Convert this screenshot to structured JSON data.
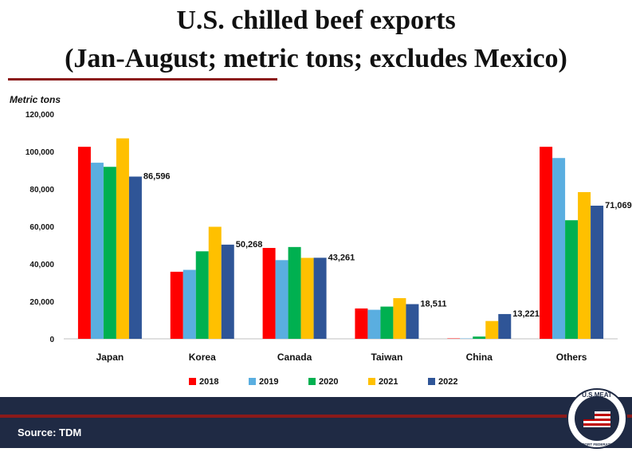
{
  "title_line1": "U.S. chilled beef exports",
  "title_line2": "(Jan-August; metric tons; excludes Mexico)",
  "source": "Source: TDM",
  "logo": {
    "top_text": "U.S.MEAT",
    "bottom_text": "EXPORT FEDERATION"
  },
  "colors": {
    "2018": "#ff0000",
    "2019": "#5aaee0",
    "2020": "#00b050",
    "2021": "#ffc000",
    "2022": "#2f5597",
    "accent": "#8b1a1a",
    "footer": "#1f2a44"
  },
  "chart_data": {
    "type": "bar",
    "ylabel": "Metric tons",
    "ylim": [
      0,
      120000
    ],
    "yticks": [
      "120,000",
      "100,000",
      "80,000",
      "60,000",
      "40,000",
      "20,000",
      "0"
    ],
    "categories": [
      "Japan",
      "Korea",
      "Canada",
      "Taiwan",
      "China",
      "Others"
    ],
    "legend_position": "bottom",
    "grid": false,
    "series": [
      {
        "name": "2018",
        "values": [
          102500,
          35800,
          48500,
          16200,
          200,
          102500
        ]
      },
      {
        "name": "2019",
        "values": [
          94000,
          36800,
          42000,
          15500,
          200,
          96500
        ]
      },
      {
        "name": "2020",
        "values": [
          91800,
          46700,
          49000,
          17200,
          1200,
          63300
        ]
      },
      {
        "name": "2021",
        "values": [
          107000,
          59800,
          43200,
          21700,
          9500,
          78300
        ]
      },
      {
        "name": "2022",
        "values": [
          86596,
          50268,
          43261,
          18511,
          13221,
          71069
        ]
      }
    ],
    "data_labels": [
      "86,596",
      "50,268",
      "43,261",
      "18,511",
      "13,221",
      "71,069"
    ]
  }
}
